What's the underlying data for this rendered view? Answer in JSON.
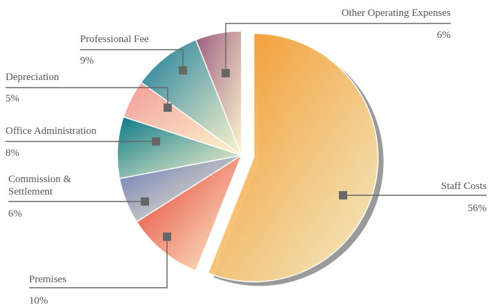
{
  "chart_data": {
    "type": "pie",
    "categories": [
      "Staff Costs",
      "Premises",
      "Commission & Settlement",
      "Office Administration",
      "Depreciation",
      "Professional Fee",
      "Other Operating Expenses"
    ],
    "values": [
      56,
      10,
      6,
      8,
      5,
      9,
      6
    ],
    "value_labels": [
      "56%",
      "10%",
      "6%",
      "8%",
      "5%",
      "9%",
      "6%"
    ],
    "colors": [
      "#f39424",
      "#e4332b",
      "#6474b4",
      "#087888",
      "#f29a98",
      "#157a98",
      "#9c5a7e"
    ]
  }
}
